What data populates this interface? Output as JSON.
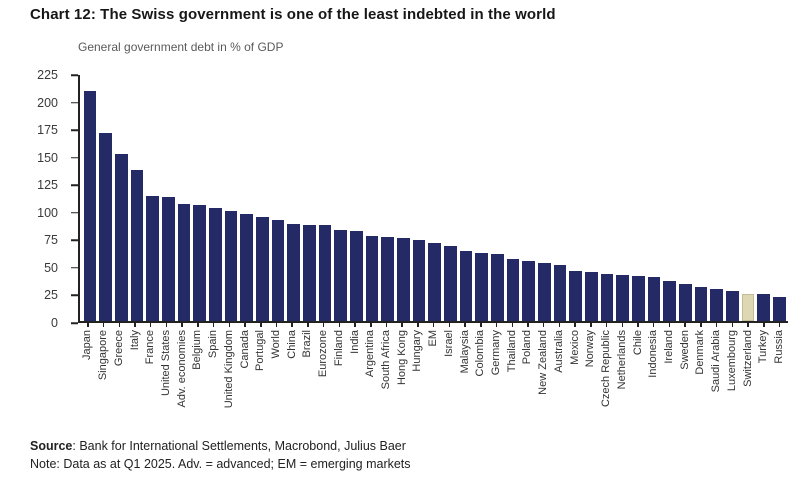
{
  "page": {
    "title": "Chart 12: The Swiss government is one of the least indebted in the world",
    "footer": {
      "source_label": "Source",
      "source_rest": ": Bank for International Settlements, Macrobond, Julius Baer",
      "note": "Note: Data as at Q1 2025. Adv. = advanced; EM = emerging markets"
    }
  },
  "chart_data": {
    "type": "bar",
    "title": "General government debt in % of GDP",
    "categories": [
      "Japan",
      "Singapore",
      "Greece",
      "Italy",
      "France",
      "United States",
      "Adv. economies",
      "Belgium",
      "Spain",
      "United Kingdom",
      "Canada",
      "Portugal",
      "World",
      "China",
      "Brazil",
      "Eurozone",
      "Finland",
      "India",
      "Argentina",
      "South Africa",
      "Hong Kong",
      "Hungary",
      "EM",
      "Israel",
      "Malaysia",
      "Colombia",
      "Germany",
      "Thailand",
      "Poland",
      "New Zealand",
      "Australia",
      "Mexico",
      "Norway",
      "Czech Republic",
      "Netherlands",
      "Chile",
      "Indonesia",
      "Ireland",
      "Sweden",
      "Denmark",
      "Saudi Arabia",
      "Luxembourg",
      "Switzerland",
      "Turkey",
      "Russia"
    ],
    "values": [
      210,
      172,
      153,
      138,
      114,
      113,
      107,
      106,
      103,
      101,
      98,
      95,
      92,
      89,
      88,
      88,
      83,
      82,
      78,
      77,
      76,
      74,
      71,
      69,
      64,
      62,
      61,
      57,
      55,
      53,
      51,
      46,
      45,
      43,
      42,
      41,
      40,
      37,
      34,
      31,
      29,
      27,
      25,
      25,
      22
    ],
    "xlabel": "",
    "ylabel": "",
    "ylim": [
      0,
      225
    ],
    "yticks": [
      0,
      25,
      50,
      75,
      100,
      125,
      150,
      175,
      200,
      225
    ],
    "grid": false,
    "legend": false,
    "bar_color": "#232a66",
    "highlight_category": "Switzerland",
    "highlight_color": "#ddd7b4",
    "highlight_border_color": "#c2bc98"
  }
}
